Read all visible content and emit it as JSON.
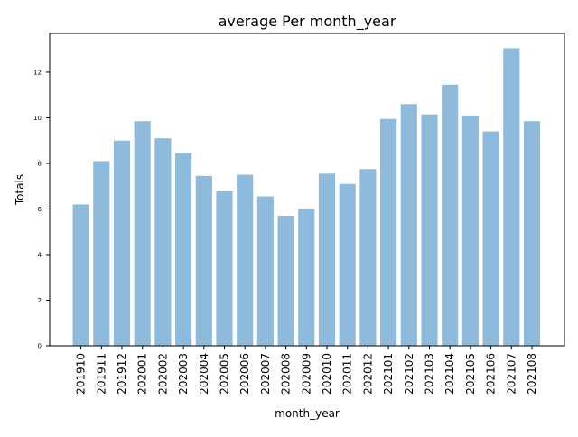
{
  "chart_data": {
    "type": "bar",
    "title": "average Per month_year",
    "xlabel": "month_year",
    "ylabel": "Totals",
    "categories": [
      "201910",
      "201911",
      "201912",
      "202001",
      "202002",
      "202003",
      "202004",
      "202005",
      "202006",
      "202007",
      "202008",
      "202009",
      "202010",
      "202011",
      "202012",
      "202101",
      "202102",
      "202103",
      "202104",
      "202105",
      "202106",
      "202107",
      "202108"
    ],
    "values": [
      6.2,
      8.1,
      9.0,
      9.85,
      9.1,
      8.45,
      7.45,
      6.8,
      7.5,
      6.55,
      5.7,
      6.0,
      7.55,
      7.1,
      7.75,
      9.95,
      10.6,
      10.15,
      11.45,
      10.1,
      9.4,
      13.05,
      9.85
    ],
    "ylim": [
      0,
      13.7
    ],
    "yticks": [
      "0",
      "2",
      "4",
      "6",
      "8",
      "10",
      "12"
    ],
    "bar_color": "#8ebbdb",
    "grid": false,
    "legend": false
  }
}
